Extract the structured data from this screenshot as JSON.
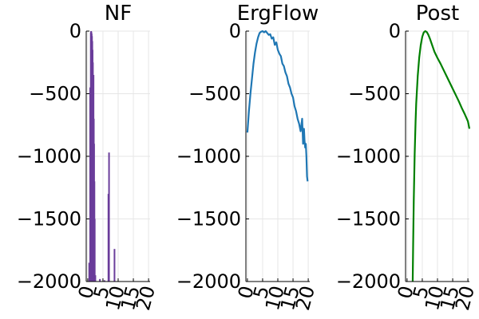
{
  "chart_data": [
    {
      "type": "line",
      "title": "NF",
      "xlabel": "",
      "ylabel": "",
      "xlim": [
        -0.5,
        20.5
      ],
      "ylim": [
        -2000,
        0
      ],
      "xticks": [
        "0",
        "5",
        "10",
        "15",
        "20"
      ],
      "yticks": [
        "0",
        "−500",
        "−1000",
        "−1500",
        "−2000"
      ],
      "grid": true,
      "series": [
        {
          "color": "#6a3d9a",
          "style": "spikes",
          "x": [
            0.5,
            0.8,
            1.0,
            1.1,
            1.2,
            1.3,
            1.4,
            1.5,
            1.6,
            1.7,
            1.8,
            1.9,
            2.0,
            2.1,
            2.2,
            2.3,
            2.5,
            4.0,
            5.5,
            6.8,
            7.0,
            8.8
          ],
          "values": [
            -1850,
            -450,
            -10,
            0,
            -5,
            -20,
            -40,
            -80,
            -150,
            -250,
            -560,
            -350,
            -700,
            -900,
            -1200,
            -1500,
            -1950,
            -1980,
            -1990,
            -1300,
            -970,
            -1740
          ]
        }
      ]
    },
    {
      "type": "line",
      "title": "ErgFlow",
      "xlabel": "",
      "ylabel": "",
      "xlim": [
        -0.5,
        20.5
      ],
      "ylim": [
        -2000,
        0
      ],
      "xticks": [
        "0",
        "5",
        "10",
        "15",
        "20"
      ],
      "yticks": [
        "0",
        "−500",
        "−1000",
        "−1500",
        "−2000"
      ],
      "grid": true,
      "series": [
        {
          "color": "#1f77b4",
          "x": [
            0,
            0.5,
            1,
            1.5,
            2,
            2.5,
            3,
            3.5,
            4,
            4.5,
            5,
            5.5,
            6,
            6.5,
            7,
            7.5,
            8,
            8.5,
            9,
            9.5,
            10,
            10.5,
            11,
            11.5,
            12,
            12.5,
            13,
            13.5,
            14,
            14.5,
            15,
            15.5,
            16,
            16.5,
            17,
            17.5,
            18,
            18.3,
            18.6,
            18.8,
            19,
            19.2,
            19.4,
            19.6,
            19.8
          ],
          "values": [
            -810,
            -640,
            -500,
            -380,
            -260,
            -170,
            -100,
            -50,
            -15,
            -5,
            0,
            -10,
            0,
            -15,
            -30,
            -25,
            -60,
            -50,
            -110,
            -90,
            -150,
            -180,
            -200,
            -260,
            -280,
            -330,
            -360,
            -420,
            -450,
            -500,
            -530,
            -600,
            -640,
            -700,
            -740,
            -800,
            -700,
            -900,
            -780,
            -880,
            -930,
            -900,
            -1000,
            -1160,
            -1200
          ]
        }
      ]
    },
    {
      "type": "line",
      "title": "Post",
      "xlabel": "",
      "ylabel": "",
      "xlim": [
        -0.5,
        20.5
      ],
      "ylim": [
        -2000,
        0
      ],
      "xticks": [
        "0",
        "5",
        "10",
        "15",
        "20"
      ],
      "yticks": [
        "0",
        "−500",
        "−1000",
        "−1500",
        "−2000"
      ],
      "grid": true,
      "series": [
        {
          "color": "#008000",
          "x": [
            1.85,
            2.0,
            2.2,
            2.5,
            2.8,
            3.0,
            3.5,
            4.0,
            4.5,
            5.0,
            5.5,
            6.0,
            6.5,
            7.0,
            7.5,
            8.0,
            9.0,
            10.0,
            11.0,
            12.0,
            13.0,
            14.0,
            15.0,
            16.0,
            17.0,
            18.0,
            19.0,
            20.0,
            20.5
          ],
          "values": [
            -2000,
            -1700,
            -1350,
            -980,
            -720,
            -580,
            -360,
            -210,
            -110,
            -45,
            -10,
            0,
            -8,
            -30,
            -60,
            -95,
            -165,
            -215,
            -260,
            -310,
            -360,
            -410,
            -460,
            -510,
            -560,
            -615,
            -665,
            -720,
            -780
          ]
        }
      ]
    }
  ]
}
